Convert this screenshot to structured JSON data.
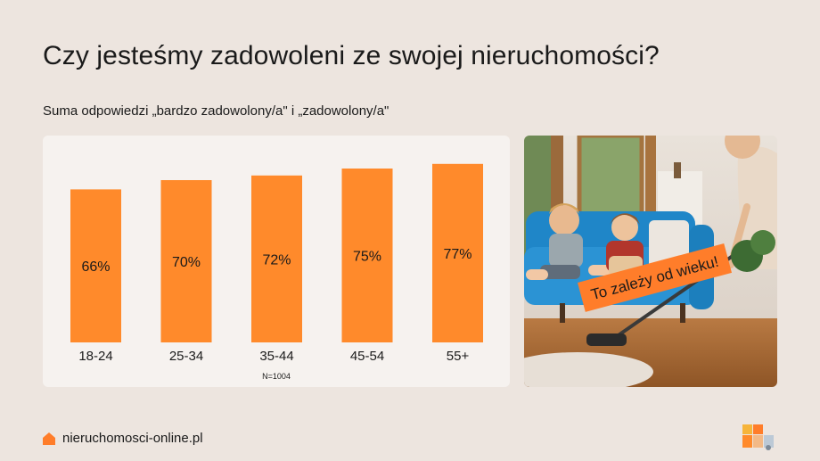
{
  "header": {
    "title": "Czy jesteśmy zadowoleni ze swojej nieruchomości?",
    "subtitle": "Suma odpowiedzi „bardzo zadowolony/a\" i „zadowolony/a\""
  },
  "chart_data": {
    "type": "bar",
    "categories": [
      "18-24",
      "25-34",
      "35-44",
      "45-54",
      "55+"
    ],
    "values": [
      66,
      70,
      72,
      75,
      77
    ],
    "value_labels": [
      "66%",
      "70%",
      "72%",
      "75%",
      "77%"
    ],
    "unit": "%",
    "note": "N=1004",
    "ylim": [
      0,
      100
    ],
    "grid": false,
    "bar_color": "#ff8a2b"
  },
  "photo": {
    "banner_text": "To zależy od wieku!",
    "banner_color": "#ff7d2a"
  },
  "footer": {
    "site": "nieruchomosci-online.pl",
    "accent": "#ff7d2a",
    "icon": "house-icon"
  },
  "colors": {
    "background": "#ede5df",
    "card": "#f6f2ef",
    "accent": "#ff8a2b"
  }
}
